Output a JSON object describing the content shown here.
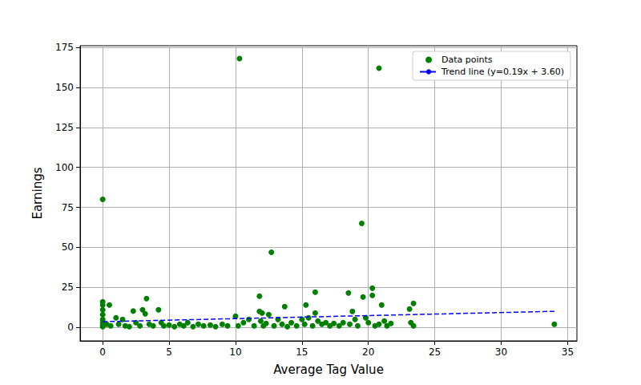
{
  "chart_data": {
    "type": "scatter",
    "xlabel": "Average Tag Value",
    "ylabel": "Earnings",
    "xlim": [
      -1.7,
      35.7
    ],
    "ylim": [
      -8.4,
      176
    ],
    "xticks": [
      0,
      5,
      10,
      15,
      20,
      25,
      30,
      35
    ],
    "yticks": [
      0,
      25,
      50,
      75,
      100,
      125,
      150,
      175
    ],
    "grid": true,
    "legend": "upper right",
    "series": [
      {
        "name": "Data points",
        "type": "scatter",
        "color": "#008000",
        "marker": "circle",
        "x": [
          0,
          0,
          0,
          0,
          0,
          0,
          0,
          0,
          0,
          0.3,
          0.5,
          0.6,
          1,
          1.2,
          1.5,
          1.7,
          2,
          2.3,
          2.5,
          2.8,
          3,
          3.2,
          3.3,
          3.5,
          3.8,
          4.2,
          4.4,
          4.6,
          5,
          5.4,
          5.8,
          6.1,
          6.4,
          6.8,
          7.2,
          7.6,
          8.1,
          8.5,
          9,
          9.4,
          10,
          10.2,
          10.3,
          10.6,
          11,
          11.4,
          11.8,
          11.8,
          11.9,
          12,
          12.1,
          12.3,
          12.5,
          12.7,
          12.9,
          13.2,
          13.5,
          13.7,
          13.9,
          14.2,
          14.6,
          15,
          15.2,
          15.3,
          15.5,
          15.8,
          16,
          16,
          16.2,
          16.5,
          16.8,
          17.1,
          17.4,
          17.8,
          18.1,
          18.5,
          18.6,
          18.8,
          19,
          19.2,
          19.5,
          19.6,
          19.8,
          20,
          20.3,
          20.3,
          20.5,
          20.8,
          20.8,
          21,
          21.2,
          21.4,
          21.7,
          23.1,
          23.2,
          23.4,
          23.4,
          34
        ],
        "values": [
          80,
          16,
          14,
          11,
          8,
          5,
          3,
          1.5,
          0.5,
          2,
          14,
          1,
          6,
          2,
          5,
          1,
          0.5,
          10.3,
          3,
          1,
          11,
          8.5,
          18,
          2,
          1,
          11,
          3,
          1,
          1.5,
          0.5,
          2,
          1,
          3,
          0.5,
          2,
          1,
          1.5,
          0.5,
          2,
          1,
          7,
          1,
          168,
          3,
          5,
          1,
          10,
          19.5,
          4,
          9,
          1,
          2.5,
          8,
          47,
          1,
          5,
          2,
          13,
          0.5,
          3,
          1,
          5,
          2,
          14,
          6,
          1,
          22,
          9,
          4,
          2,
          3,
          1,
          2.5,
          1,
          3,
          21.5,
          2,
          10,
          5,
          1,
          65,
          19,
          6,
          3,
          24.5,
          20,
          1,
          162,
          2,
          14,
          4,
          1,
          2.5,
          11.5,
          3,
          15,
          1,
          2
        ]
      },
      {
        "name": "Trend line (y=0.19x + 3.60)",
        "type": "line",
        "color": "#0000ff",
        "line_style": "dashed",
        "x": [
          0,
          34
        ],
        "values": [
          3.6,
          10.06
        ]
      }
    ]
  }
}
